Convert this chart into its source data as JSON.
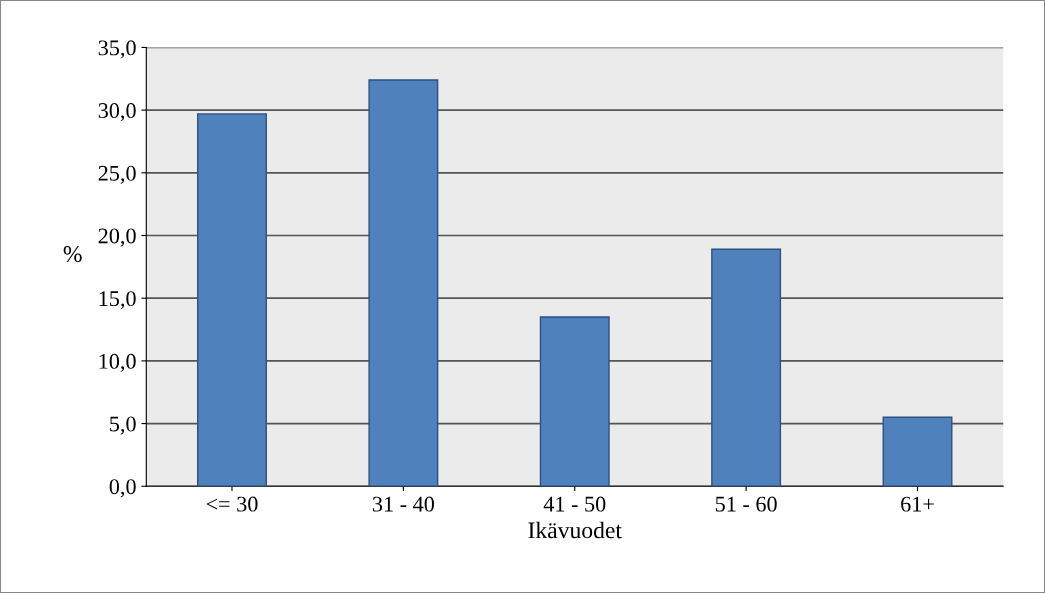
{
  "chart_data": {
    "type": "bar",
    "xlabel": "Ikävuodet",
    "ylabel": "%",
    "categories": [
      "<= 30",
      "31 - 40",
      "41 - 50",
      "51 - 60",
      "61+"
    ],
    "values": [
      29.7,
      32.4,
      13.5,
      18.9,
      5.5
    ],
    "color": "#4f81bd",
    "ylim": [
      0,
      35
    ],
    "yticks": [
      {
        "value": 0,
        "label": "0,0"
      },
      {
        "value": 5,
        "label": "5,0"
      },
      {
        "value": 10,
        "label": "10,0"
      },
      {
        "value": 15,
        "label": "15,0"
      },
      {
        "value": 20,
        "label": "20,0"
      },
      {
        "value": 25,
        "label": "25,0"
      },
      {
        "value": 30,
        "label": "30,0"
      },
      {
        "value": 35,
        "label": "35,0"
      }
    ],
    "grid": "y"
  }
}
